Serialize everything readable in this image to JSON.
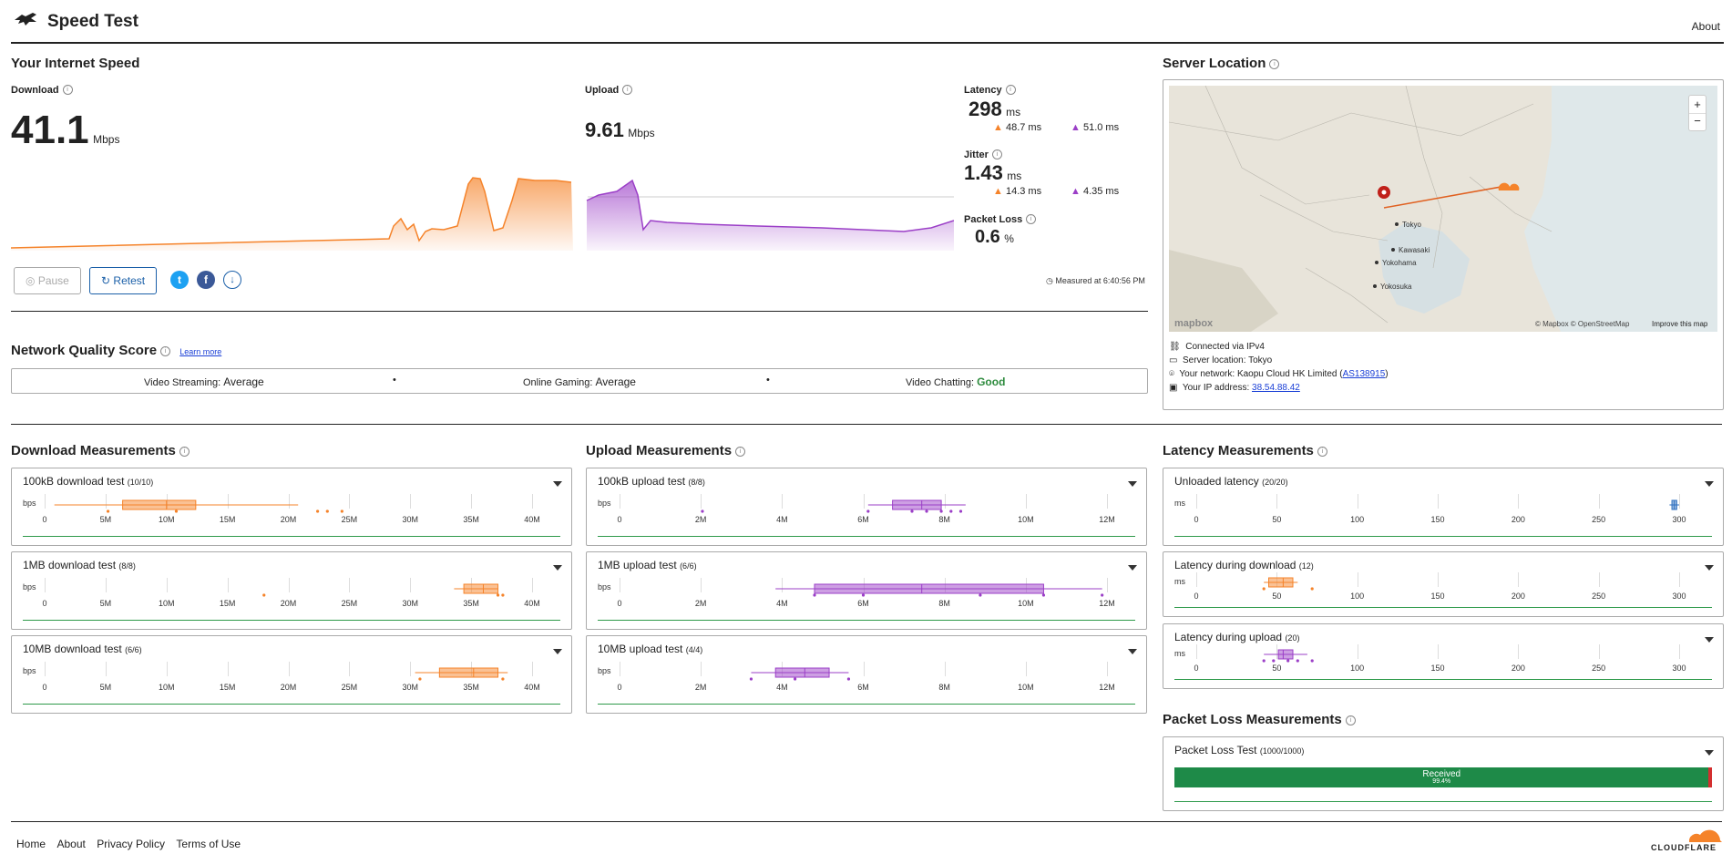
{
  "header": {
    "title": "Speed Test",
    "about": "About"
  },
  "speed": {
    "heading": "Your Internet Speed",
    "download_label": "Download",
    "download_value": "41.1",
    "download_unit": "Mbps",
    "upload_label": "Upload",
    "upload_value": "9.61",
    "upload_unit": "Mbps",
    "latency_label": "Latency",
    "latency_value": "298",
    "latency_unit": "ms",
    "latency_down": "48.7 ms",
    "latency_up": "51.0 ms",
    "jitter_label": "Jitter",
    "jitter_value": "1.43",
    "jitter_unit": "ms",
    "jitter_down": "14.3 ms",
    "jitter_up": "4.35 ms",
    "loss_label": "Packet Loss",
    "loss_value": "0.6",
    "loss_unit": "%",
    "pause": "Pause",
    "retest": "Retest",
    "measured_at": "Measured at 6:40:56 PM"
  },
  "nqs": {
    "heading": "Network Quality Score",
    "learn_more": "Learn more",
    "items": [
      {
        "label": "Video Streaming:",
        "value": "Average"
      },
      {
        "label": "Online Gaming:",
        "value": "Average"
      },
      {
        "label": "Video Chatting:",
        "value": "Good"
      }
    ]
  },
  "server": {
    "heading": "Server Location",
    "map_labels": [
      "Tokyo",
      "Kawasaki",
      "Yokohama",
      "Yokosuka"
    ],
    "mapbox": "mapbox",
    "attribution": "© Mapbox © OpenStreetMap",
    "improve": "Improve this map",
    "connected": "Connected via IPv4",
    "location": "Server location: Tokyo",
    "network_prefix": "Your network: Kaopu Cloud HK Limited (",
    "network_as": "AS138915",
    "network_suffix": ")",
    "ip_prefix": "Your IP address: ",
    "ip": "38.54.88.42"
  },
  "measurements": {
    "download_heading": "Download Measurements",
    "upload_heading": "Upload Measurements",
    "latency_heading": "Latency Measurements",
    "packet_heading": "Packet Loss Measurements",
    "download": [
      {
        "title": "100kB download test",
        "count": "(10/10)"
      },
      {
        "title": "1MB download test",
        "count": "(8/8)"
      },
      {
        "title": "10MB download test",
        "count": "(6/6)"
      }
    ],
    "upload": [
      {
        "title": "100kB upload test",
        "count": "(8/8)"
      },
      {
        "title": "1MB upload test",
        "count": "(6/6)"
      },
      {
        "title": "10MB upload test",
        "count": "(4/4)"
      }
    ],
    "latency": [
      {
        "title": "Unloaded latency",
        "count": "(20/20)"
      },
      {
        "title": "Latency during download",
        "count": "(12)"
      },
      {
        "title": "Latency during upload",
        "count": "(20)"
      }
    ],
    "packet": {
      "title": "Packet Loss Test",
      "count": "(1000/1000)",
      "received": "Received",
      "pct": "99.4%",
      "received_fraction": 0.994
    },
    "bps_unit": "bps",
    "ms_unit": "ms",
    "download_ticks": [
      "0",
      "5M",
      "10M",
      "15M",
      "20M",
      "25M",
      "30M",
      "35M",
      "40M"
    ],
    "upload_ticks": [
      "0",
      "2M",
      "4M",
      "6M",
      "8M",
      "10M",
      "12M"
    ],
    "latency_ticks": [
      "0",
      "50",
      "100",
      "150",
      "200",
      "250",
      "300"
    ]
  },
  "footer": {
    "links": [
      "Home",
      "About",
      "Privacy Policy",
      "Terms of Use"
    ],
    "brand": "CLOUDFLARE"
  },
  "colors": {
    "download": "#f5832a",
    "upload": "#9b3fc7",
    "good": "#2e8b3e",
    "link": "#1a3fd6"
  }
}
